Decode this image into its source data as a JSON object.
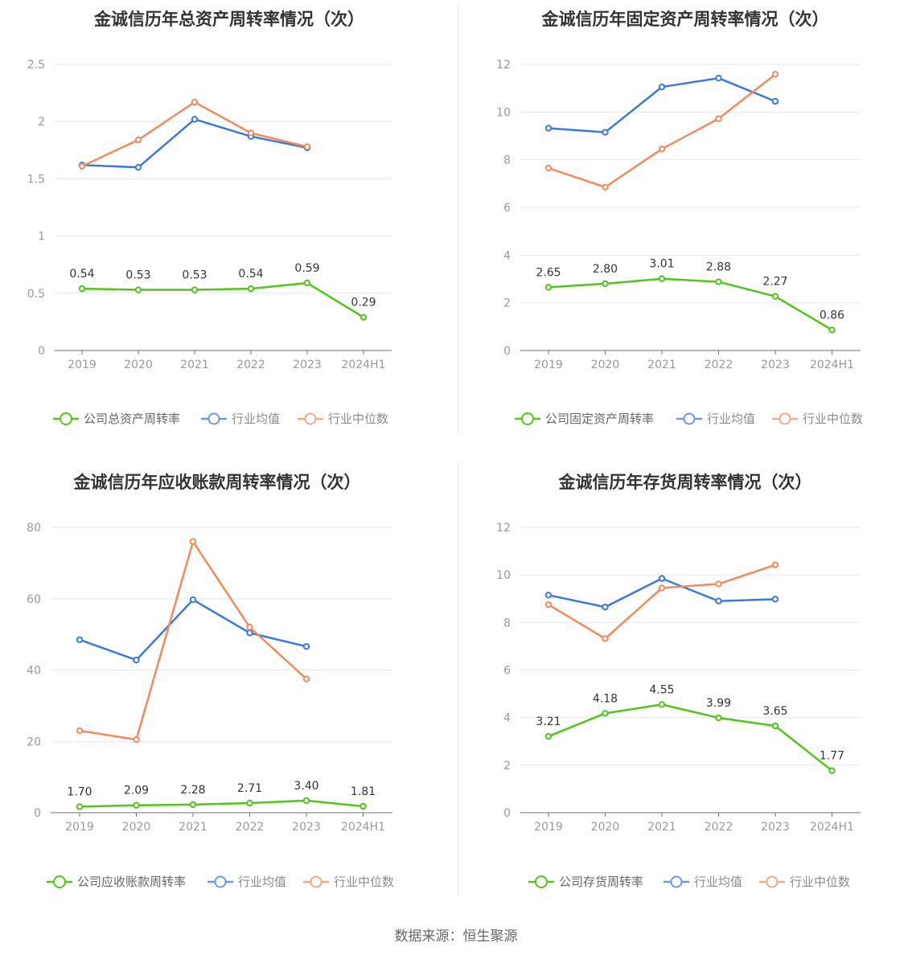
{
  "source": "数据来源：恒生聚源",
  "colors": {
    "company": "#52c41a",
    "avg": "#3a78de",
    "median": "#f28a5a"
  },
  "chart_data": [
    {
      "type": "line",
      "title": "金诚信历年总资产周转率情况（次）",
      "categories": [
        "2019",
        "2020",
        "2021",
        "2022",
        "2023",
        "2024H1"
      ],
      "yticks": [
        "0",
        "0.5",
        "1",
        "1.5",
        "2",
        "2.5"
      ],
      "ylim": [
        0,
        2.5
      ],
      "grid": true,
      "legend_position": "bottom",
      "series": [
        {
          "key": "company",
          "name": "公司总资产周转率",
          "values": [
            0.54,
            0.53,
            0.53,
            0.54,
            0.59,
            0.29
          ],
          "labels": [
            "0.54",
            "0.53",
            "0.53",
            "0.54",
            "0.59",
            "0.29"
          ]
        },
        {
          "key": "avg",
          "name": "行业均值",
          "values": [
            1.62,
            1.6,
            2.02,
            1.87,
            1.77,
            null
          ]
        },
        {
          "key": "median",
          "name": "行业中位数",
          "values": [
            1.61,
            1.84,
            2.17,
            1.9,
            1.78,
            null
          ]
        }
      ]
    },
    {
      "type": "line",
      "title": "金诚信历年固定资产周转率情况（次）",
      "categories": [
        "2019",
        "2020",
        "2021",
        "2022",
        "2023",
        "2024H1"
      ],
      "yticks": [
        "0",
        "2",
        "4",
        "6",
        "8",
        "10",
        "12"
      ],
      "ylim": [
        0,
        12
      ],
      "grid": true,
      "legend_position": "bottom",
      "series": [
        {
          "key": "company",
          "name": "公司固定资产周转率",
          "values": [
            2.65,
            2.8,
            3.01,
            2.88,
            2.27,
            0.86
          ],
          "labels": [
            "2.65",
            "2.80",
            "3.01",
            "2.88",
            "2.27",
            "0.86"
          ]
        },
        {
          "key": "avg",
          "name": "行业均值",
          "values": [
            9.32,
            9.15,
            11.05,
            11.42,
            10.45,
            null
          ]
        },
        {
          "key": "median",
          "name": "行业中位数",
          "values": [
            7.65,
            6.85,
            8.45,
            9.72,
            11.58,
            null
          ]
        }
      ]
    },
    {
      "type": "line",
      "title": "金诚信历年应收账款周转率情况（次）",
      "categories": [
        "2019",
        "2020",
        "2021",
        "2022",
        "2023",
        "2024H1"
      ],
      "yticks": [
        "0",
        "20",
        "40",
        "60",
        "80"
      ],
      "ylim": [
        0,
        80
      ],
      "grid": true,
      "legend_position": "bottom",
      "series": [
        {
          "key": "company",
          "name": "公司应收账款周转率",
          "values": [
            1.7,
            2.09,
            2.28,
            2.71,
            3.4,
            1.81
          ],
          "labels": [
            "1.70",
            "2.09",
            "2.28",
            "2.71",
            "3.40",
            "1.81"
          ]
        },
        {
          "key": "avg",
          "name": "行业均值",
          "values": [
            48.5,
            42.8,
            59.7,
            50.4,
            46.6,
            null
          ]
        },
        {
          "key": "median",
          "name": "行业中位数",
          "values": [
            23.0,
            20.5,
            76.0,
            52.0,
            37.5,
            null
          ]
        }
      ]
    },
    {
      "type": "line",
      "title": "金诚信历年存货周转率情况（次）",
      "categories": [
        "2019",
        "2020",
        "2021",
        "2022",
        "2023",
        "2024H1"
      ],
      "yticks": [
        "0",
        "2",
        "4",
        "6",
        "8",
        "10",
        "12"
      ],
      "ylim": [
        0,
        12
      ],
      "grid": true,
      "legend_position": "bottom",
      "series": [
        {
          "key": "company",
          "name": "公司存货周转率",
          "values": [
            3.21,
            4.18,
            4.55,
            3.99,
            3.65,
            1.77
          ],
          "labels": [
            "3.21",
            "4.18",
            "4.55",
            "3.99",
            "3.65",
            "1.77"
          ]
        },
        {
          "key": "avg",
          "name": "行业均值",
          "values": [
            9.15,
            8.65,
            9.85,
            8.9,
            8.98,
            null
          ]
        },
        {
          "key": "median",
          "name": "行业中位数",
          "values": [
            8.75,
            7.32,
            9.45,
            9.62,
            10.42,
            null
          ]
        }
      ]
    }
  ]
}
